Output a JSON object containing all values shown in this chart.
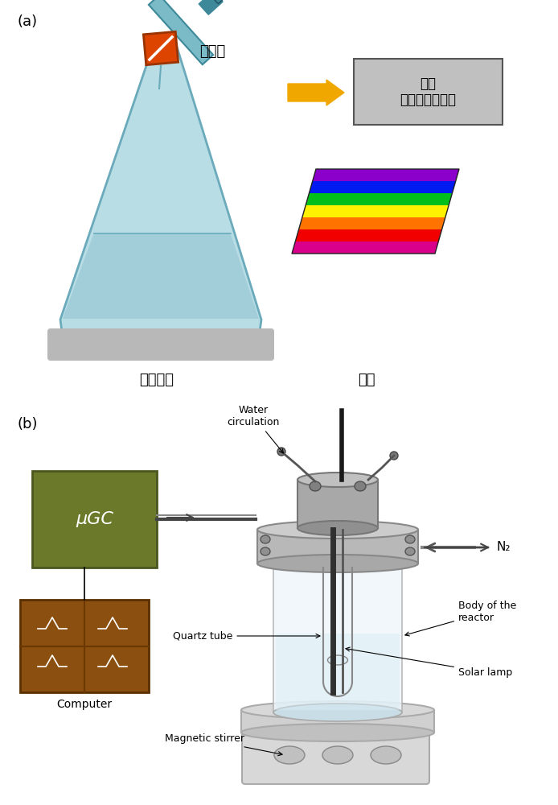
{
  "bg_color": "#ffffff",
  "panel_a_label": "(a)",
  "panel_b_label": "(b)",
  "flask_label": "반응용기",
  "lamp_label": "램프",
  "syringe_label": "주사기",
  "gc_box_label": "기체\n크로마토그레피",
  "ugc_label": "μGC",
  "computer_label": "Computer",
  "water_circ_label": "Water\ncirculation",
  "n2_label": "N₂",
  "body_reactor_label": "Body of the\nreactor",
  "solar_lamp_label": "Solar lamp",
  "quartz_tube_label": "Quartz tube",
  "magnetic_stirrer_label": "Magnetic stirrer",
  "flask_color": "#b8dde5",
  "flask_outline": "#6aaabb",
  "flask_base_color": "#b8b8b8",
  "liquid_color": "#9eccd8",
  "syringe_body_color": "#7bbbc8",
  "syringe_cap_color": "#3d8899",
  "syringe_rubber_color": "#dd4400",
  "arrow_color": "#f0a800",
  "gc_box_color": "#c0c0c0",
  "gc_text_color": "#000000",
  "ugc_color": "#6b7a2a",
  "computer_color": "#8b5010",
  "reactor_light": "#e8e8e8",
  "reactor_mid": "#c0c0c0",
  "reactor_dark": "#909090"
}
